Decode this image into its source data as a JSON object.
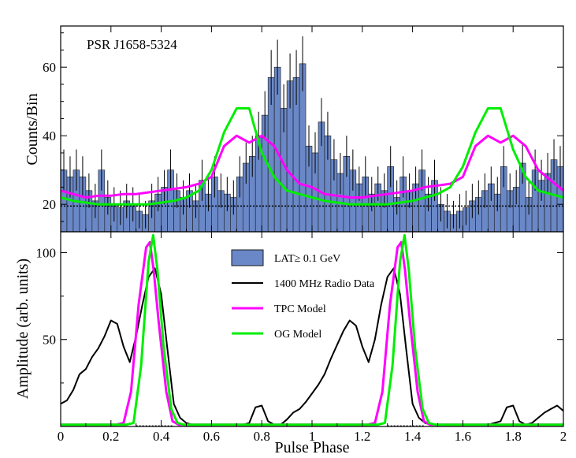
{
  "chart_data": [
    {
      "type": "bar",
      "panel": "top",
      "title": "",
      "annotation": "PSR J1658-5324",
      "xlabel": "",
      "ylabel": "Counts/Bin",
      "xlim": [
        0,
        2
      ],
      "ylim": [
        12,
        72
      ],
      "yticks": [
        20,
        40,
        60
      ],
      "ytick_labels": [
        "20",
        "40",
        "60"
      ],
      "background_level": 19.5,
      "bins": {
        "width": 0.025,
        "values": [
          30,
          28,
          30,
          28,
          24,
          21,
          30,
          22,
          20,
          19,
          21,
          20,
          18,
          17,
          21,
          23,
          25,
          30,
          24,
          22,
          24,
          21,
          27,
          23,
          28,
          24,
          23,
          22,
          28,
          32,
          34,
          40,
          46,
          57,
          60,
          48,
          56,
          57,
          61,
          37,
          35,
          44,
          40,
          33,
          29,
          34,
          30,
          26,
          28,
          23,
          26,
          24,
          31,
          22,
          28,
          24,
          26,
          30,
          23,
          27,
          20,
          18,
          17,
          18,
          19,
          21,
          22,
          24,
          26,
          23,
          31,
          24,
          25,
          32,
          22,
          30,
          27,
          29,
          33,
          31
        ],
        "errors": [
          6,
          6,
          6,
          6,
          5,
          5,
          6,
          5,
          5,
          5,
          5,
          5,
          5,
          4,
          5,
          5,
          5,
          6,
          5,
          5,
          5,
          5,
          6,
          5,
          6,
          5,
          5,
          5,
          6,
          6,
          6,
          7,
          7,
          8,
          8,
          7,
          8,
          8,
          8,
          6,
          6,
          7,
          7,
          6,
          6,
          6,
          6,
          5,
          6,
          5,
          5,
          5,
          6,
          5,
          6,
          5,
          5,
          6,
          5,
          6,
          5,
          5,
          4,
          5,
          5,
          5,
          5,
          5,
          5,
          5,
          6,
          5,
          5,
          6,
          5,
          6,
          6,
          6,
          6,
          6
        ]
      },
      "series": [
        {
          "name": "TPC Model",
          "color": "#ff00ff",
          "x": [
            0,
            0.05,
            0.1,
            0.15,
            0.2,
            0.25,
            0.3,
            0.35,
            0.4,
            0.45,
            0.5,
            0.55,
            0.6,
            0.65,
            0.7,
            0.75,
            0.8,
            0.85,
            0.9,
            0.95,
            1,
            1.05,
            1.1,
            1.15,
            1.2,
            1.25,
            1.3,
            1.35,
            1.4,
            1.45,
            1.5,
            1.55,
            1.6,
            1.65,
            1.7,
            1.75,
            1.8,
            1.85,
            1.9,
            1.95,
            2
          ],
          "y": [
            24,
            23,
            22,
            22.5,
            22.5,
            23,
            23,
            23.5,
            24,
            24.5,
            25,
            26,
            28,
            37,
            40,
            38,
            40,
            37,
            30,
            26,
            25,
            23,
            22.5,
            22,
            22,
            22.5,
            23,
            23.5,
            24,
            25,
            25.5,
            26,
            28,
            37,
            40,
            38,
            40,
            37,
            30,
            27,
            24
          ]
        },
        {
          "name": "OG Model",
          "color": "#00ee00",
          "x": [
            0,
            0.05,
            0.1,
            0.15,
            0.2,
            0.25,
            0.3,
            0.35,
            0.4,
            0.45,
            0.5,
            0.55,
            0.6,
            0.65,
            0.7,
            0.75,
            0.8,
            0.85,
            0.9,
            0.95,
            1,
            1.05,
            1.1,
            1.15,
            1.2,
            1.25,
            1.3,
            1.35,
            1.4,
            1.45,
            1.5,
            1.55,
            1.6,
            1.65,
            1.7,
            1.75,
            1.8,
            1.85,
            1.9,
            1.95,
            2
          ],
          "y": [
            22,
            21,
            20.5,
            20,
            20,
            20,
            20,
            20,
            20.5,
            21,
            22,
            24,
            30,
            41,
            48,
            48,
            35,
            28,
            24,
            23,
            22,
            21,
            20.5,
            20,
            20,
            20,
            20,
            20.5,
            21,
            22,
            23,
            25,
            31,
            41,
            48,
            48,
            36,
            28,
            24,
            23,
            22
          ]
        }
      ]
    },
    {
      "type": "line",
      "panel": "bottom",
      "title": "",
      "xlabel": "Pulse Phase",
      "ylabel": "Amplitude (arb. units)",
      "xlim": [
        0,
        2
      ],
      "ylim": [
        0,
        112
      ],
      "xticks": [
        0,
        0.2,
        0.4,
        0.6,
        0.8,
        1,
        1.2,
        1.4,
        1.6,
        1.8,
        2
      ],
      "xtick_labels": [
        "0",
        "0.2",
        "0.4",
        "0.6",
        "0.8",
        "1",
        "1.2",
        "1.4",
        "1.6",
        "1.8",
        "2"
      ],
      "yticks": [
        50,
        100
      ],
      "ytick_labels": [
        "50",
        "100"
      ],
      "legend_position": "top-center",
      "legend": [
        {
          "label": "LAT≥ 0.1 GeV",
          "kind": "box",
          "color": "#6a88c7"
        },
        {
          "label": "1400 MHz Radio Data",
          "kind": "line",
          "color": "#000000"
        },
        {
          "label": "TPC Model",
          "kind": "line",
          "color": "#ff00ff"
        },
        {
          "label": "OG Model",
          "kind": "line",
          "color": "#00ee00"
        }
      ],
      "series": [
        {
          "name": "1400 MHz Radio Data",
          "color": "#000000",
          "x": [
            0,
            0.025,
            0.05,
            0.075,
            0.1,
            0.125,
            0.15,
            0.175,
            0.2,
            0.225,
            0.25,
            0.275,
            0.3,
            0.325,
            0.35,
            0.375,
            0.4,
            0.425,
            0.45,
            0.475,
            0.5,
            0.525,
            0.55,
            0.575,
            0.6,
            0.625,
            0.65,
            0.675,
            0.7,
            0.725,
            0.75,
            0.775,
            0.8,
            0.825,
            0.85,
            0.875,
            0.9,
            0.925,
            0.95,
            0.975,
            1,
            1.025,
            1.05,
            1.075,
            1.1,
            1.125,
            1.15,
            1.175,
            1.2,
            1.225,
            1.25,
            1.275,
            1.3,
            1.325,
            1.35,
            1.375,
            1.4,
            1.425,
            1.45,
            1.475,
            1.5,
            1.525,
            1.55,
            1.575,
            1.6,
            1.625,
            1.65,
            1.675,
            1.7,
            1.725,
            1.75,
            1.775,
            1.8,
            1.825,
            1.85,
            1.875,
            1.9,
            1.925,
            1.95,
            1.975,
            2
          ],
          "y": [
            13,
            15,
            21,
            30,
            33,
            40,
            45,
            52,
            61,
            59,
            46,
            37,
            52,
            70,
            86,
            91,
            76,
            44,
            13,
            5,
            2,
            1,
            1,
            1,
            1,
            1,
            1,
            1,
            1,
            1,
            2,
            11,
            12,
            3,
            1,
            1,
            4,
            8,
            10,
            14,
            19,
            24,
            30,
            39,
            47,
            55,
            61,
            58,
            46,
            37,
            50,
            70,
            86,
            91,
            76,
            44,
            13,
            5,
            2,
            1,
            1,
            1,
            1,
            1,
            1,
            1,
            1,
            1,
            1,
            2,
            3,
            11,
            12,
            3,
            1,
            2,
            5,
            8,
            10,
            12,
            9
          ]
        },
        {
          "name": "TPC Model",
          "color": "#ff00ff",
          "x": [
            0,
            0.22,
            0.25,
            0.28,
            0.31,
            0.34,
            0.355,
            0.37,
            0.39,
            0.42,
            0.445,
            0.47,
            1.22,
            1.25,
            1.28,
            1.31,
            1.34,
            1.355,
            1.37,
            1.39,
            1.42,
            1.445,
            1.47,
            2
          ],
          "y": [
            1,
            1,
            2,
            20,
            70,
            103,
            106,
            90,
            60,
            20,
            3,
            1,
            1,
            2,
            20,
            70,
            103,
            106,
            90,
            60,
            20,
            3,
            1,
            1
          ]
        },
        {
          "name": "OG Model",
          "color": "#00ee00",
          "x": [
            0,
            0.26,
            0.29,
            0.32,
            0.35,
            0.368,
            0.385,
            0.41,
            0.44,
            0.465,
            0.49,
            1.26,
            1.29,
            1.32,
            1.35,
            1.368,
            1.385,
            1.41,
            1.44,
            1.465,
            1.49,
            2
          ],
          "y": [
            1,
            1,
            2,
            35,
            95,
            110,
            90,
            45,
            10,
            2,
            1,
            1,
            2,
            35,
            95,
            110,
            90,
            45,
            10,
            2,
            1,
            1
          ]
        }
      ]
    }
  ]
}
